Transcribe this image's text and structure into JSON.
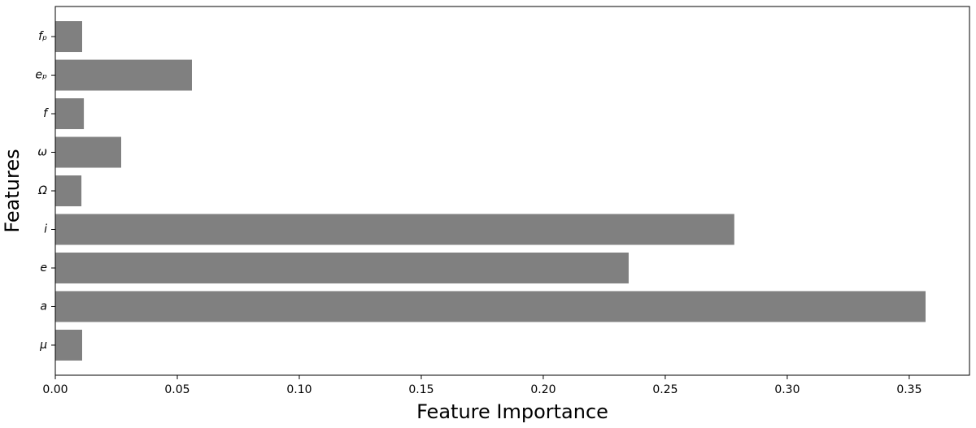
{
  "chart_data": {
    "type": "barh",
    "x_label": "Feature Importance",
    "y_label": "Features",
    "categories": [
      "μ",
      "a",
      "e",
      "i",
      "Ω",
      "ω",
      "f",
      "eₚ",
      "fₚ"
    ],
    "values": [
      0.011,
      0.3567,
      0.235,
      0.2783,
      0.0107,
      0.027,
      0.0117,
      0.056,
      0.011
    ],
    "color": "#808080",
    "xlim": [
      0,
      0.3747
    ],
    "xticks": [
      {
        "value": 0,
        "label": "0.00"
      },
      0.05,
      {
        "value": 0.1,
        "label": "0.10"
      },
      0.15,
      {
        "value": 0.2,
        "label": "0.20"
      },
      0.25,
      {
        "value": 0.3,
        "label": "0.30"
      },
      0.35
    ],
    "grid": false
  }
}
